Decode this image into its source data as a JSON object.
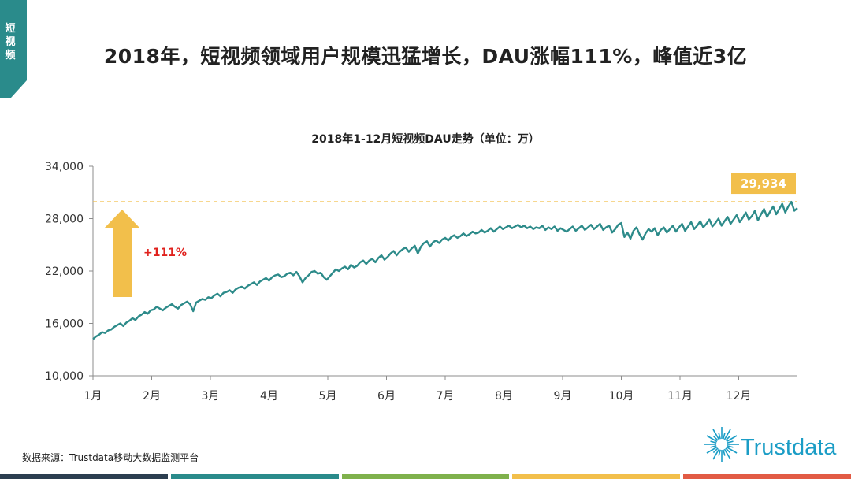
{
  "side_tab": {
    "label": "短视频",
    "color": "#2a8b8b"
  },
  "headline": "2018年，短视频领域用户规模迅猛增长，DAU涨幅111%，峰值近3亿",
  "chart_data": {
    "type": "line",
    "title": "2018年1-12月短视频DAU走势（单位：万）",
    "xlabel": "",
    "ylabel": "",
    "x_ticks": [
      "1月",
      "2月",
      "3月",
      "4月",
      "5月",
      "6月",
      "7月",
      "8月",
      "9月",
      "10月",
      "11月",
      "12月"
    ],
    "y_ticks": [
      "10,000",
      "16,000",
      "22,000",
      "28,000",
      "34,000"
    ],
    "ylim": [
      10000,
      34000
    ],
    "grid": false,
    "series": [
      {
        "color": "#2d8b8a",
        "values": [
          14200,
          14500,
          14700,
          15000,
          14900,
          15200,
          15300,
          15600,
          15800,
          16000,
          15700,
          16100,
          16300,
          16600,
          16400,
          16800,
          17000,
          17300,
          17100,
          17500,
          17600,
          17900,
          17700,
          17500,
          17800,
          18000,
          18200,
          17900,
          17700,
          18100,
          18300,
          18500,
          18200,
          17400,
          18400,
          18600,
          18800,
          18700,
          19000,
          18900,
          19200,
          19400,
          19100,
          19500,
          19600,
          19800,
          19500,
          19900,
          20100,
          20200,
          20000,
          20300,
          20500,
          20700,
          20400,
          20800,
          21000,
          21200,
          20900,
          21300,
          21500,
          21600,
          21300,
          21400,
          21700,
          21800,
          21500,
          21900,
          21400,
          20700,
          21200,
          21500,
          21900,
          22000,
          21700,
          21800,
          21300,
          21000,
          21400,
          21800,
          22200,
          22000,
          22300,
          22500,
          22200,
          22700,
          22400,
          22600,
          23000,
          23200,
          22800,
          23200,
          23400,
          23000,
          23500,
          23800,
          23300,
          23600,
          24000,
          24300,
          23800,
          24200,
          24500,
          24700,
          24200,
          24600,
          24900,
          24000,
          24800,
          25200,
          25400,
          24800,
          25300,
          25500,
          25200,
          25600,
          25800,
          25500,
          25900,
          26100,
          25800,
          26000,
          26300,
          26000,
          26200,
          26500,
          26300,
          26400,
          26700,
          26400,
          26600,
          26900,
          26500,
          26800,
          27100,
          26800,
          27000,
          27200,
          26900,
          27100,
          27300,
          27000,
          27200,
          26900,
          27100,
          26800,
          27000,
          26900,
          27200,
          26700,
          27000,
          26800,
          27100,
          26600,
          26900,
          26700,
          26500,
          26800,
          27100,
          26600,
          26900,
          27200,
          26700,
          27000,
          27300,
          26800,
          27100,
          27400,
          26700,
          27000,
          27200,
          26400,
          26800,
          27300,
          27500,
          25900,
          26400,
          25700,
          26600,
          27000,
          26200,
          25600,
          26300,
          26800,
          26500,
          26900,
          26100,
          26700,
          27000,
          26400,
          26800,
          27200,
          26500,
          27000,
          27400,
          26600,
          27100,
          27600,
          26800,
          27200,
          27700,
          27000,
          27400,
          27900,
          27100,
          27500,
          28000,
          27200,
          27700,
          28200,
          27400,
          27900,
          28400,
          27600,
          28100,
          28700,
          27900,
          28300,
          28900,
          27800,
          28500,
          29100,
          28200,
          28800,
          29400,
          28500,
          29100,
          29700,
          28700,
          29400,
          29934,
          28900,
          29200
        ]
      }
    ],
    "annotation_value_label": "29,934",
    "reference_value": 29934,
    "growth_label": "+111%"
  },
  "source": "数据来源：Trustdata移动大数据监测平台",
  "logo": {
    "text": "Trustdata"
  },
  "colors": {
    "line": "#2d8b8a",
    "arrow": "#f2bf4b",
    "dashed": "#f2bf4b",
    "growth_text": "#e0211d",
    "logo": "#1b9dc6"
  },
  "bottom_bar_colors": [
    "#2c3e50",
    "#2a8b8b",
    "#7fb14c",
    "#f2bf4b",
    "#e25b45"
  ]
}
